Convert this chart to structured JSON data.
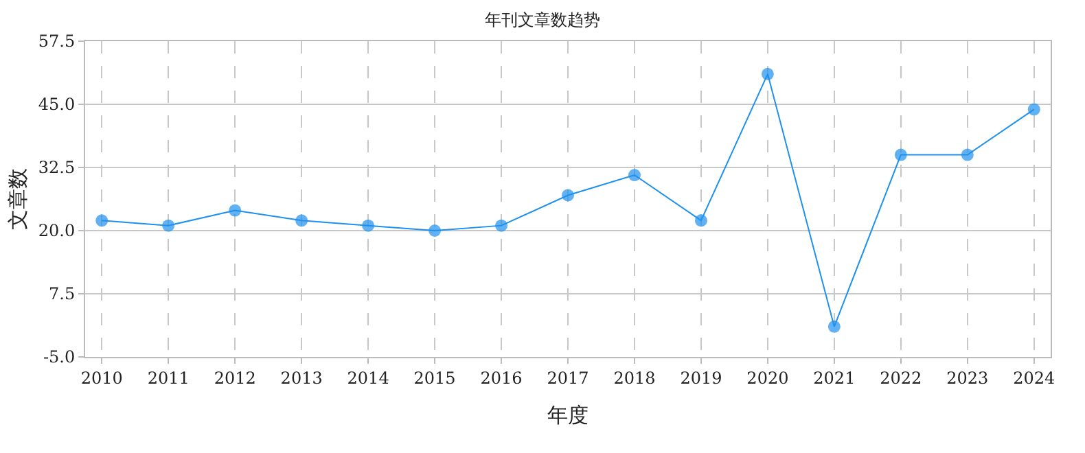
{
  "chart_data": {
    "type": "line",
    "title": "年刊文章数趋势",
    "xlabel": "年度",
    "ylabel": "文章数",
    "categories": [
      "2010",
      "2011",
      "2012",
      "2013",
      "2014",
      "2015",
      "2016",
      "2017",
      "2018",
      "2019",
      "2020",
      "2021",
      "2022",
      "2023",
      "2024"
    ],
    "series": [
      {
        "color": "#1e90ee",
        "values": [
          22,
          21,
          24,
          22,
          21,
          20,
          21,
          27,
          31,
          22,
          51,
          1,
          35,
          35,
          44
        ]
      }
    ],
    "ylim": [
      -5,
      57.5
    ],
    "yticks": [
      {
        "value": -5,
        "label": "-5.0"
      },
      7.5,
      {
        "value": 20,
        "label": "20.0"
      },
      32.5,
      {
        "value": 45,
        "label": "45.0"
      },
      57.5
    ],
    "grid": true,
    "marker": "circle",
    "line_style": "solid"
  }
}
